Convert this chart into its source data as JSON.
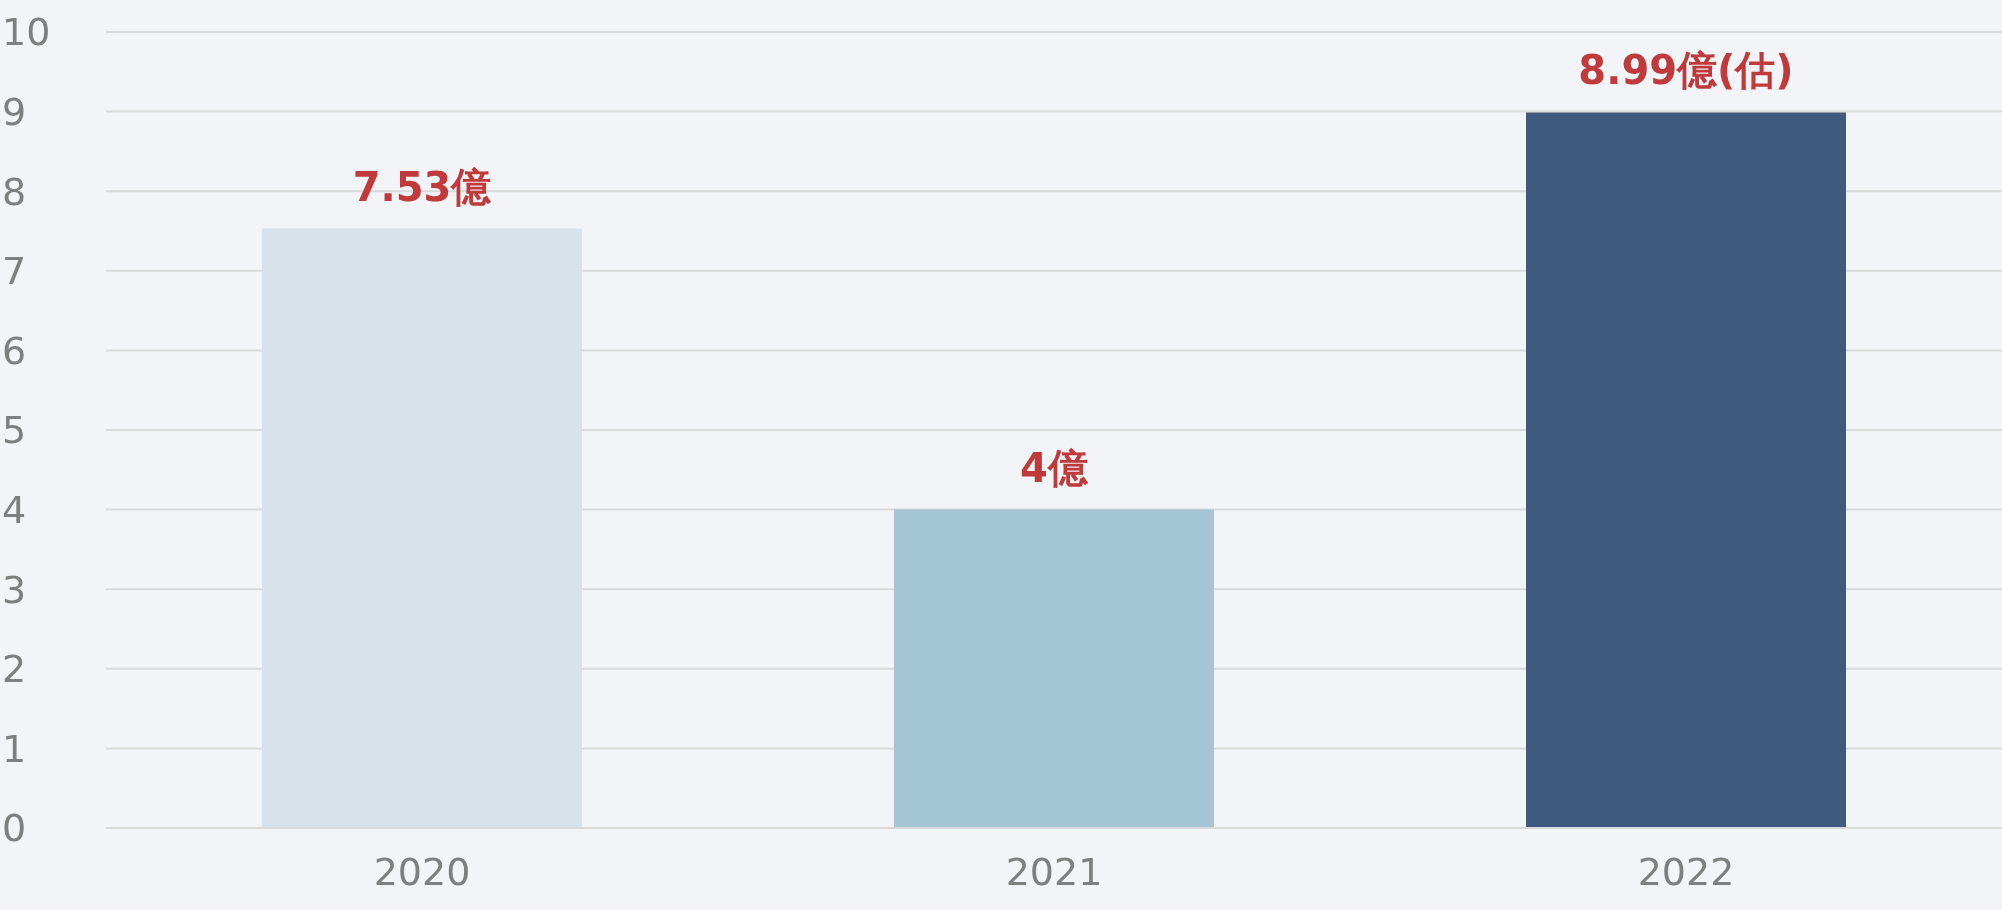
{
  "chart_data": {
    "type": "bar",
    "categories": [
      "2020",
      "2021",
      "2022"
    ],
    "values": [
      7.53,
      4,
      8.99
    ],
    "colors": [
      "#d8e2ea",
      "#a3c5d6",
      "#3f5a7c"
    ],
    "value_labels": [
      "7.53億",
      "4億",
      "8.99億(估)"
    ],
    "ylim": [
      0,
      10
    ],
    "yticks": [
      0,
      1,
      2,
      3,
      4,
      5,
      6,
      7,
      8,
      9,
      10
    ],
    "grid": "y"
  }
}
